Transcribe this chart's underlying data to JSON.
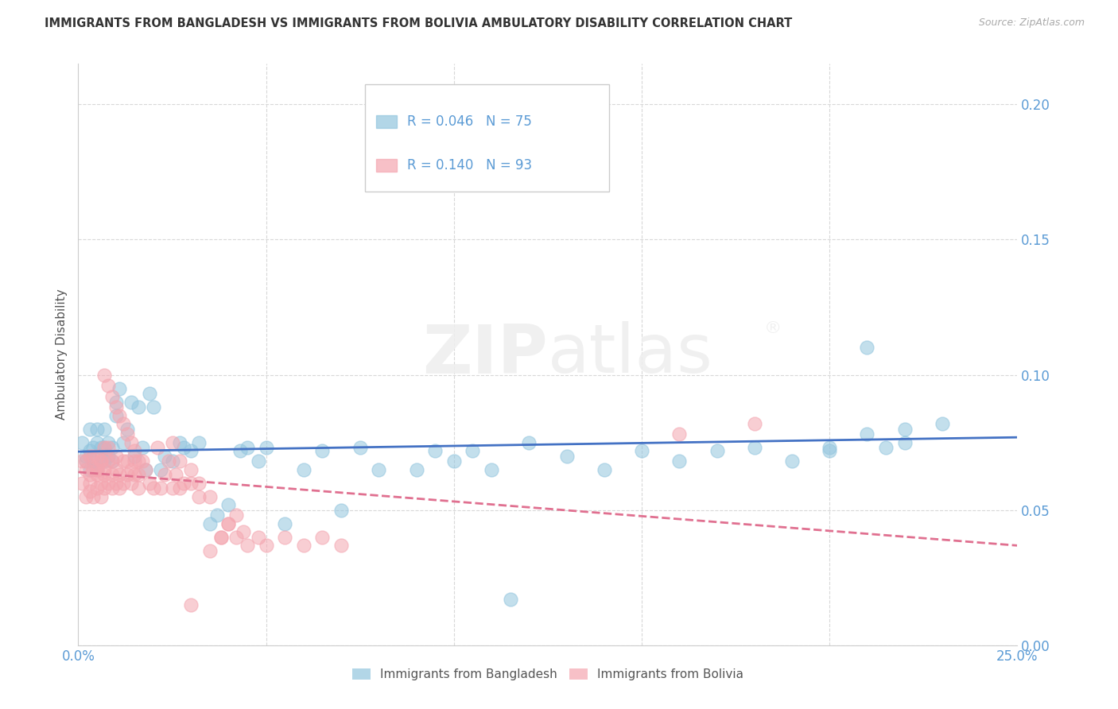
{
  "title": "IMMIGRANTS FROM BANGLADESH VS IMMIGRANTS FROM BOLIVIA AMBULATORY DISABILITY CORRELATION CHART",
  "source": "Source: ZipAtlas.com",
  "ylabel": "Ambulatory Disability",
  "xlim": [
    0.0,
    0.25
  ],
  "ylim": [
    0.0,
    0.215
  ],
  "x_ticks": [
    0.0,
    0.05,
    0.1,
    0.15,
    0.2,
    0.25
  ],
  "y_ticks": [
    0.0,
    0.05,
    0.1,
    0.15,
    0.2
  ],
  "background_color": "#ffffff",
  "grid_color": "#d8d8d8",
  "watermark": "ZIPatlas",
  "legend1_label": "Immigrants from Bangladesh",
  "legend2_label": "Immigrants from Bolivia",
  "color_bangladesh": "#92c5de",
  "color_bolivia": "#f4a6b0",
  "line_bangladesh": "#4472c4",
  "line_bolivia": "#e07090",
  "R_bangladesh": 0.046,
  "N_bangladesh": 75,
  "R_bolivia": 0.14,
  "N_bolivia": 93,
  "bangladesh_x": [
    0.001,
    0.002,
    0.002,
    0.003,
    0.003,
    0.003,
    0.004,
    0.004,
    0.005,
    0.005,
    0.005,
    0.006,
    0.006,
    0.007,
    0.007,
    0.007,
    0.008,
    0.008,
    0.009,
    0.009,
    0.01,
    0.01,
    0.011,
    0.012,
    0.013,
    0.014,
    0.015,
    0.016,
    0.017,
    0.018,
    0.019,
    0.02,
    0.022,
    0.023,
    0.025,
    0.027,
    0.028,
    0.03,
    0.032,
    0.035,
    0.037,
    0.04,
    0.043,
    0.045,
    0.048,
    0.05,
    0.055,
    0.06,
    0.065,
    0.07,
    0.075,
    0.08,
    0.09,
    0.095,
    0.1,
    0.105,
    0.11,
    0.12,
    0.13,
    0.14,
    0.15,
    0.16,
    0.17,
    0.18,
    0.19,
    0.2,
    0.21,
    0.22,
    0.23,
    0.2,
    0.21,
    0.215,
    0.22,
    0.115,
    0.13
  ],
  "bangladesh_y": [
    0.075,
    0.07,
    0.068,
    0.072,
    0.065,
    0.08,
    0.073,
    0.068,
    0.075,
    0.065,
    0.08,
    0.07,
    0.073,
    0.068,
    0.073,
    0.08,
    0.07,
    0.075,
    0.068,
    0.073,
    0.09,
    0.085,
    0.095,
    0.075,
    0.08,
    0.09,
    0.07,
    0.088,
    0.073,
    0.065,
    0.093,
    0.088,
    0.065,
    0.07,
    0.068,
    0.075,
    0.073,
    0.072,
    0.075,
    0.045,
    0.048,
    0.052,
    0.072,
    0.073,
    0.068,
    0.073,
    0.045,
    0.065,
    0.072,
    0.05,
    0.073,
    0.065,
    0.065,
    0.072,
    0.068,
    0.072,
    0.065,
    0.075,
    0.07,
    0.065,
    0.072,
    0.068,
    0.072,
    0.073,
    0.068,
    0.072,
    0.11,
    0.075,
    0.082,
    0.073,
    0.078,
    0.073,
    0.08,
    0.017,
    0.175
  ],
  "bolivia_x": [
    0.001,
    0.001,
    0.002,
    0.002,
    0.002,
    0.003,
    0.003,
    0.003,
    0.003,
    0.004,
    0.004,
    0.004,
    0.005,
    0.005,
    0.005,
    0.005,
    0.005,
    0.006,
    0.006,
    0.006,
    0.006,
    0.007,
    0.007,
    0.007,
    0.007,
    0.008,
    0.008,
    0.008,
    0.009,
    0.009,
    0.009,
    0.01,
    0.01,
    0.01,
    0.011,
    0.011,
    0.012,
    0.012,
    0.013,
    0.013,
    0.014,
    0.014,
    0.015,
    0.015,
    0.016,
    0.016,
    0.017,
    0.018,
    0.019,
    0.02,
    0.021,
    0.022,
    0.023,
    0.024,
    0.025,
    0.026,
    0.027,
    0.028,
    0.03,
    0.032,
    0.035,
    0.038,
    0.04,
    0.042,
    0.045,
    0.048,
    0.05,
    0.055,
    0.06,
    0.065,
    0.07,
    0.025,
    0.027,
    0.03,
    0.032,
    0.035,
    0.038,
    0.04,
    0.042,
    0.044,
    0.007,
    0.008,
    0.009,
    0.01,
    0.011,
    0.012,
    0.013,
    0.014,
    0.015,
    0.016,
    0.16,
    0.18,
    0.03
  ],
  "bolivia_y": [
    0.068,
    0.06,
    0.065,
    0.055,
    0.068,
    0.063,
    0.057,
    0.07,
    0.06,
    0.065,
    0.055,
    0.07,
    0.065,
    0.058,
    0.063,
    0.07,
    0.065,
    0.06,
    0.068,
    0.055,
    0.068,
    0.073,
    0.063,
    0.058,
    0.065,
    0.06,
    0.073,
    0.068,
    0.058,
    0.063,
    0.068,
    0.06,
    0.065,
    0.07,
    0.058,
    0.063,
    0.068,
    0.06,
    0.063,
    0.068,
    0.065,
    0.06,
    0.063,
    0.068,
    0.063,
    0.058,
    0.068,
    0.065,
    0.06,
    0.058,
    0.073,
    0.058,
    0.063,
    0.068,
    0.058,
    0.063,
    0.068,
    0.06,
    0.065,
    0.06,
    0.055,
    0.04,
    0.045,
    0.04,
    0.037,
    0.04,
    0.037,
    0.04,
    0.037,
    0.04,
    0.037,
    0.075,
    0.058,
    0.06,
    0.055,
    0.035,
    0.04,
    0.045,
    0.048,
    0.042,
    0.1,
    0.096,
    0.092,
    0.088,
    0.085,
    0.082,
    0.078,
    0.075,
    0.072,
    0.068,
    0.078,
    0.082,
    0.015
  ]
}
